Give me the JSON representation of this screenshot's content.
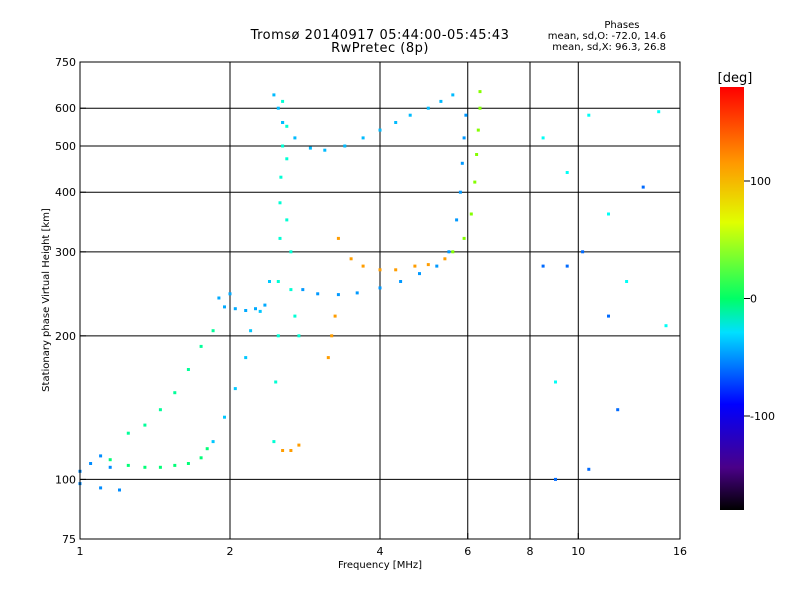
{
  "chart_data": {
    "type": "scatter",
    "title": "Tromsø 20140917 05:44:00-05:45:43",
    "subtitle": "RwPretec (8p)",
    "phase_stats": {
      "title": "Phases",
      "line_o": "mean, sd,O: -72.0, 14.6",
      "line_x": "mean, sd,X:  96.3, 26.8"
    },
    "xlabel": "Frequency [MHz]",
    "ylabel": "Stationary phase Virtual Height [km]",
    "xscale": "log",
    "yscale": "log",
    "xlim": [
      1,
      16
    ],
    "ylim": [
      75,
      750
    ],
    "x_ticks": [
      1,
      2,
      4,
      6,
      8,
      10,
      16
    ],
    "x_gridlines": [
      2,
      4,
      6,
      8,
      10
    ],
    "y_ticks": [
      75,
      100,
      200,
      300,
      400,
      500,
      600,
      750
    ],
    "y_gridlines": [
      100,
      200,
      300,
      400,
      500,
      600
    ],
    "grid": true,
    "colorbar": {
      "label": "[deg]",
      "min": -180,
      "max": 180,
      "ticks": [
        100,
        0,
        -100
      ]
    },
    "series": [
      {
        "phase": -100,
        "points": [
          [
            1.0,
            104
          ],
          [
            1.05,
            108
          ],
          [
            1.1,
            112
          ],
          [
            1.15,
            106
          ],
          [
            1.0,
            98
          ],
          [
            1.1,
            96
          ],
          [
            1.2,
            95
          ]
        ]
      },
      {
        "phase": -20,
        "points": [
          [
            1.15,
            110
          ],
          [
            1.25,
            107
          ],
          [
            1.35,
            106
          ],
          [
            1.45,
            106
          ],
          [
            1.55,
            107
          ],
          [
            1.65,
            108
          ],
          [
            1.75,
            111
          ],
          [
            1.8,
            116
          ]
        ]
      },
      {
        "phase": -30,
        "points": [
          [
            1.25,
            125
          ],
          [
            1.35,
            130
          ],
          [
            1.45,
            140
          ],
          [
            1.55,
            152
          ],
          [
            1.65,
            170
          ],
          [
            1.75,
            190
          ],
          [
            1.85,
            205
          ]
        ]
      },
      {
        "phase": -80,
        "points": [
          [
            1.85,
            120
          ],
          [
            1.95,
            135
          ],
          [
            2.05,
            155
          ],
          [
            2.15,
            180
          ],
          [
            2.2,
            205
          ],
          [
            2.3,
            225
          ],
          [
            2.4,
            260
          ]
        ]
      },
      {
        "phase": -90,
        "points": [
          [
            1.95,
            230
          ],
          [
            2.05,
            228
          ],
          [
            2.15,
            226
          ],
          [
            2.25,
            228
          ],
          [
            2.35,
            232
          ],
          [
            2.0,
            245
          ],
          [
            1.9,
            240
          ]
        ]
      },
      {
        "phase": -50,
        "points": [
          [
            2.45,
            120
          ],
          [
            2.47,
            160
          ],
          [
            2.5,
            200
          ],
          [
            2.5,
            260
          ],
          [
            2.52,
            320
          ],
          [
            2.52,
            380
          ],
          [
            2.53,
            430
          ],
          [
            2.55,
            500
          ],
          [
            2.55,
            560
          ],
          [
            2.55,
            620
          ],
          [
            2.6,
            550
          ],
          [
            2.6,
            470
          ],
          [
            2.6,
            350
          ],
          [
            2.65,
            300
          ],
          [
            2.65,
            250
          ],
          [
            2.7,
            220
          ],
          [
            2.75,
            200
          ]
        ]
      },
      {
        "phase": -85,
        "points": [
          [
            2.45,
            640
          ],
          [
            2.5,
            600
          ],
          [
            2.55,
            560
          ],
          [
            2.7,
            520
          ],
          [
            2.9,
            495
          ],
          [
            3.1,
            490
          ],
          [
            3.4,
            500
          ],
          [
            3.7,
            520
          ],
          [
            4.0,
            540
          ],
          [
            4.3,
            560
          ],
          [
            4.6,
            580
          ],
          [
            5.0,
            600
          ],
          [
            5.3,
            620
          ],
          [
            5.6,
            640
          ]
        ]
      },
      {
        "phase": -95,
        "points": [
          [
            2.8,
            250
          ],
          [
            3.0,
            245
          ],
          [
            3.3,
            244
          ],
          [
            3.6,
            246
          ],
          [
            4.0,
            252
          ],
          [
            4.4,
            260
          ],
          [
            4.8,
            270
          ],
          [
            5.2,
            280
          ],
          [
            5.5,
            300
          ],
          [
            5.7,
            350
          ],
          [
            5.8,
            400
          ],
          [
            5.85,
            460
          ],
          [
            5.9,
            520
          ],
          [
            5.95,
            580
          ]
        ]
      },
      {
        "phase": 130,
        "points": [
          [
            3.3,
            320
          ],
          [
            3.5,
            290
          ],
          [
            3.7,
            280
          ],
          [
            4.0,
            275
          ],
          [
            4.3,
            275
          ],
          [
            4.7,
            280
          ],
          [
            5.0,
            282
          ],
          [
            5.4,
            290
          ],
          [
            3.15,
            180
          ],
          [
            3.2,
            200
          ],
          [
            3.25,
            220
          ],
          [
            2.55,
            115
          ],
          [
            2.65,
            115
          ],
          [
            2.75,
            118
          ]
        ]
      },
      {
        "phase": 60,
        "points": [
          [
            5.6,
            300
          ],
          [
            5.9,
            320
          ],
          [
            6.1,
            360
          ],
          [
            6.2,
            420
          ],
          [
            6.25,
            480
          ],
          [
            6.3,
            540
          ],
          [
            6.35,
            600
          ],
          [
            6.35,
            650
          ]
        ]
      },
      {
        "phase": -110,
        "points": [
          [
            9.0,
            100
          ],
          [
            10.5,
            105
          ],
          [
            8.5,
            280
          ],
          [
            12.0,
            140
          ],
          [
            13.5,
            410
          ],
          [
            9.5,
            280
          ],
          [
            10.2,
            300
          ],
          [
            11.5,
            220
          ]
        ]
      },
      {
        "phase": -60,
        "points": [
          [
            8.5,
            520
          ],
          [
            9.5,
            440
          ],
          [
            10.5,
            580
          ],
          [
            11.5,
            360
          ],
          [
            14.5,
            590
          ],
          [
            15.0,
            210
          ],
          [
            12.5,
            260
          ],
          [
            9.0,
            160
          ]
        ]
      }
    ]
  }
}
